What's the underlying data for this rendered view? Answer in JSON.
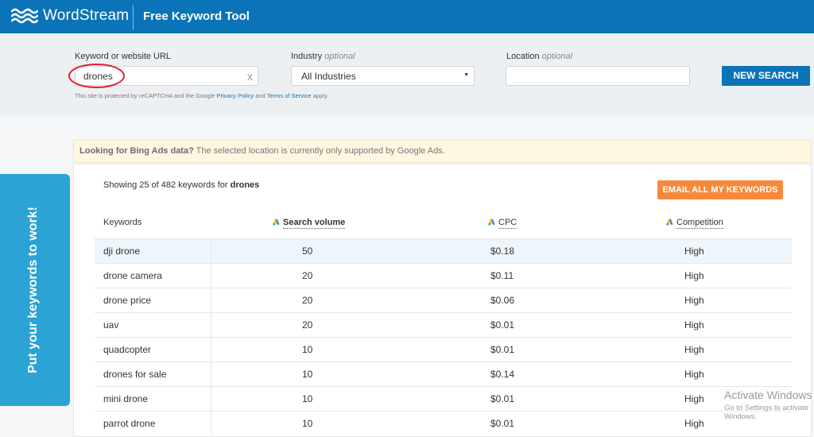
{
  "header": {
    "logo_text": "WordStream",
    "tool_title": "Free Keyword Tool"
  },
  "search": {
    "keyword_label": "Keyword or website URL",
    "keyword_value": "drones",
    "clear_label": "x",
    "industry_label": "Industry",
    "industry_optional": "optional",
    "industry_value": "All Industries",
    "location_label": "Location",
    "location_optional": "optional",
    "location_value": "",
    "new_search_label": "NEW SEARCH",
    "recaptcha_prefix": "This site is protected by reCAPTCHA and the Google",
    "privacy_link": "Privacy Policy",
    "recaptcha_and": "and",
    "terms_link": "Terms of Service",
    "recaptcha_suffix": "apply."
  },
  "notice": {
    "title": "Looking for Bing Ads data?",
    "text": "The selected location is currently only supported by Google Ads."
  },
  "results": {
    "showing_prefix": "Showing 25 of 482 keywords for",
    "showing_term": "drones",
    "email_button": "EMAIL ALL MY KEYWORDS",
    "columns": {
      "keywords": "Keywords",
      "search_volume": "Search volume",
      "cpc": "CPC",
      "competition": "Competition"
    },
    "rows": [
      {
        "keyword": "dji drone",
        "volume": "50",
        "cpc": "$0.18",
        "competition": "High"
      },
      {
        "keyword": "drone camera",
        "volume": "20",
        "cpc": "$0.11",
        "competition": "High"
      },
      {
        "keyword": "drone price",
        "volume": "20",
        "cpc": "$0.06",
        "competition": "High"
      },
      {
        "keyword": "uav",
        "volume": "20",
        "cpc": "$0.01",
        "competition": "High"
      },
      {
        "keyword": "quadcopter",
        "volume": "10",
        "cpc": "$0.01",
        "competition": "High"
      },
      {
        "keyword": "drones for sale",
        "volume": "10",
        "cpc": "$0.14",
        "competition": "High"
      },
      {
        "keyword": "mini drone",
        "volume": "10",
        "cpc": "$0.01",
        "competition": "High"
      },
      {
        "keyword": "parrot drone",
        "volume": "10",
        "cpc": "$0.01",
        "competition": "High"
      }
    ]
  },
  "promo": {
    "text": "Put your keywords to work!"
  },
  "watermark": {
    "line1": "Activate Windows",
    "line2": "Go to Settings to activate Windows."
  },
  "colors": {
    "brand_blue": "#0b73b7",
    "orange": "#f7893d",
    "promo_blue": "#2ba3d4",
    "highlight_circle": "#e0202b"
  }
}
